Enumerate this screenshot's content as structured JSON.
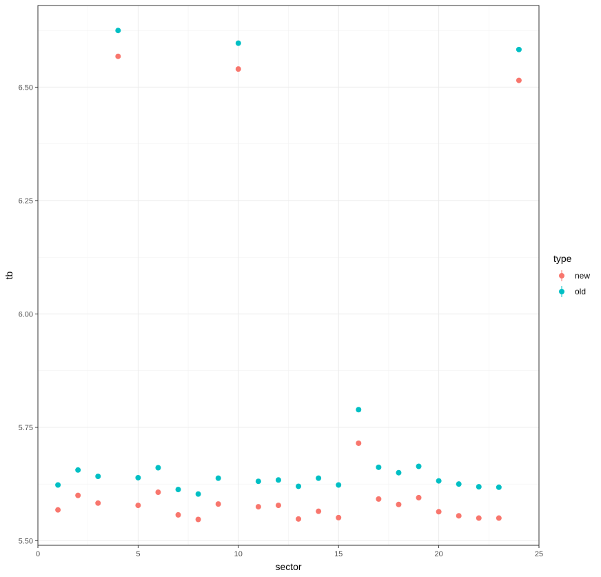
{
  "chart_data": {
    "type": "scatter",
    "xlabel": "sector",
    "ylabel": "tb",
    "xlim": [
      0,
      25
    ],
    "ylim": [
      5.49,
      6.68
    ],
    "x_ticks": [
      0,
      5,
      10,
      15,
      20,
      25
    ],
    "y_ticks": [
      5.5,
      5.75,
      6.0,
      6.25,
      6.5
    ],
    "y_tick_labels": [
      "5.50",
      "5.75",
      "6.00",
      "6.25",
      "6.50"
    ],
    "grid": true,
    "legend": {
      "title": "type",
      "placement": "right"
    },
    "series": [
      {
        "name": "new",
        "color": "#F8766D",
        "x": [
          1,
          2,
          3,
          4,
          5,
          6,
          7,
          8,
          9,
          10,
          11,
          12,
          13,
          14,
          15,
          16,
          17,
          18,
          19,
          20,
          21,
          22,
          23,
          24
        ],
        "y": [
          5.568,
          5.6,
          5.583,
          6.568,
          5.578,
          5.607,
          5.557,
          5.547,
          5.581,
          6.54,
          5.575,
          5.578,
          5.548,
          5.565,
          5.551,
          5.715,
          5.592,
          5.58,
          5.595,
          5.564,
          5.555,
          5.55,
          5.55,
          6.515
        ]
      },
      {
        "name": "old",
        "color": "#00BFC4",
        "x": [
          1,
          2,
          3,
          4,
          5,
          6,
          7,
          8,
          9,
          10,
          11,
          12,
          13,
          14,
          15,
          16,
          17,
          18,
          19,
          20,
          21,
          22,
          23,
          24
        ],
        "y": [
          5.623,
          5.656,
          5.642,
          6.625,
          5.639,
          5.661,
          5.613,
          5.603,
          5.638,
          6.597,
          5.631,
          5.634,
          5.62,
          5.638,
          5.623,
          5.789,
          5.662,
          5.65,
          5.664,
          5.632,
          5.625,
          5.619,
          5.618,
          6.583
        ]
      }
    ]
  }
}
